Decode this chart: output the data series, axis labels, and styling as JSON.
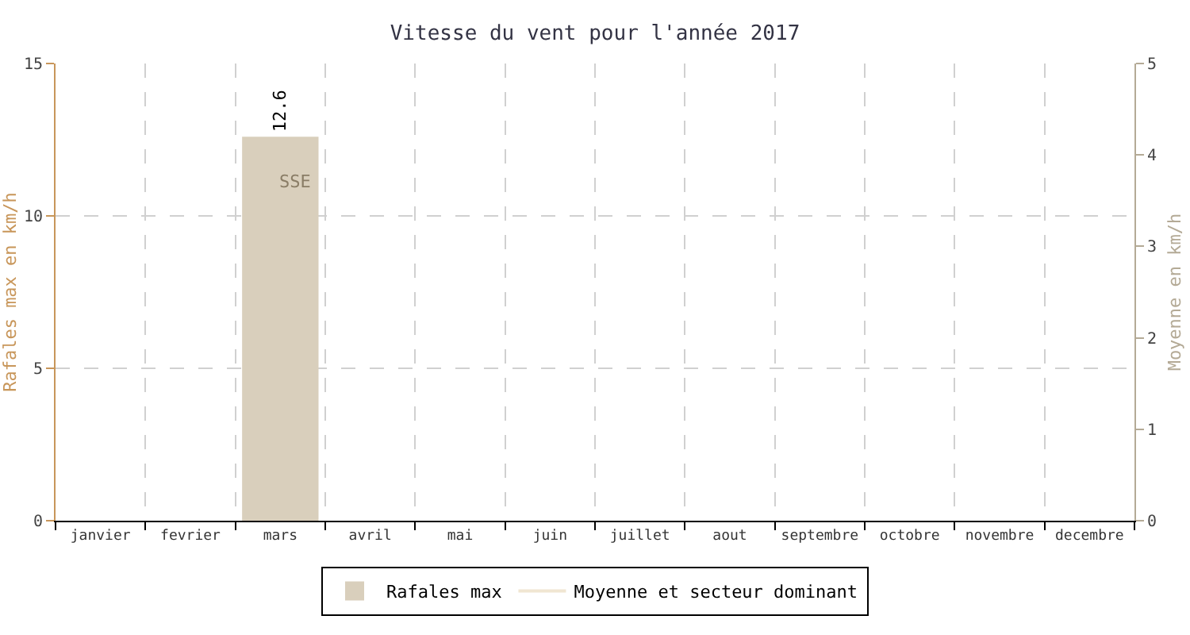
{
  "chart_data": {
    "type": "bar",
    "title": "Vitesse du vent pour l'année 2017",
    "categories": [
      "janvier",
      "fevrier",
      "mars",
      "avril",
      "mai",
      "juin",
      "juillet",
      "aout",
      "septembre",
      "octobre",
      "novembre",
      "decembre"
    ],
    "series": [
      {
        "name": "Rafales max",
        "color": "#d9cfbc",
        "values": [
          null,
          null,
          12.6,
          null,
          null,
          null,
          null,
          null,
          null,
          null,
          null,
          null
        ]
      },
      {
        "name": "Moyenne et secteur dominant",
        "type": "line",
        "axis": "y2",
        "color": "#f0e6d2",
        "values": [
          null,
          null,
          null,
          null,
          null,
          null,
          null,
          null,
          null,
          null,
          null,
          null
        ]
      }
    ],
    "data_labels": true,
    "annotations": [
      "SSE"
    ],
    "ylabel": "Rafales max en km/h",
    "y2label": "Moyenne en km/h",
    "ylim": [
      0,
      15
    ],
    "yticks": [
      0,
      5,
      10,
      15
    ],
    "y2lim": [
      0,
      5
    ],
    "y2ticks": [
      0,
      1,
      2,
      3,
      4,
      5
    ],
    "grid": true,
    "legend": "bottom"
  }
}
